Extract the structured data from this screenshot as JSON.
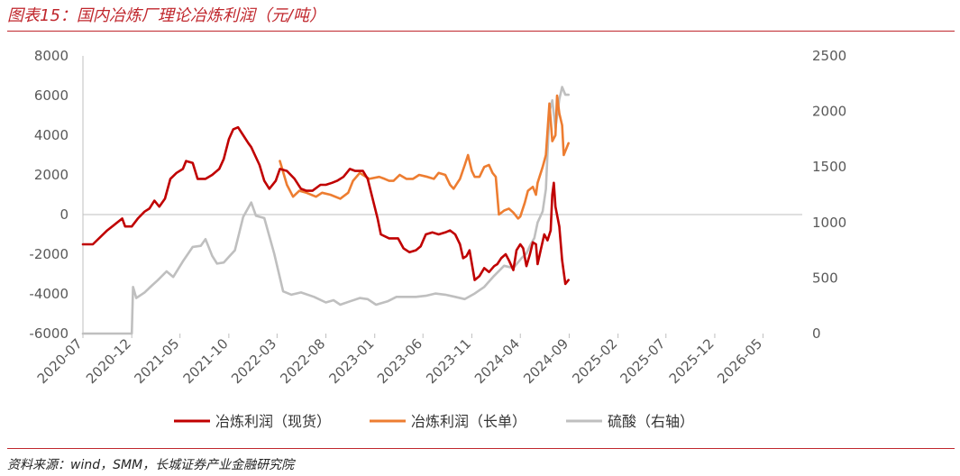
{
  "header": {
    "title": "图表15：国内冶炼厂理论冶炼利润（元/吨）"
  },
  "footer": {
    "source": "资料来源：wind，SMM，长城证券产业金融研究院"
  },
  "colors": {
    "accent": "#c0272d",
    "spot": "#c00000",
    "long": "#ed7d31",
    "acid": "#bfbfbf"
  },
  "chart_data": {
    "type": "line",
    "title": "国内冶炼厂理论冶炼利润（元/吨）",
    "x_axis": {
      "start": "2020-07",
      "end": "2026-09",
      "tick_labels": [
        "2020-07",
        "2020-12",
        "2021-05",
        "2021-10",
        "2022-03",
        "2022-08",
        "2023-01",
        "2023-06",
        "2023-11",
        "2024-04",
        "2024-09",
        "2025-02",
        "2025-07",
        "2025-12",
        "2026-05"
      ]
    },
    "y_left": {
      "min": -6000,
      "max": 8000,
      "step": 2000,
      "tick_labels": [
        "8000",
        "6000",
        "4000",
        "2000",
        "0",
        "-2000",
        "-4000",
        "-6000"
      ]
    },
    "y_right": {
      "min": 0,
      "max": 2500,
      "step": 500,
      "tick_labels": [
        "2500",
        "2000",
        "1500",
        "1000",
        "500",
        "0"
      ]
    },
    "grid": false,
    "legend_position": "bottom",
    "series": [
      {
        "name": "冶炼利润（现货）",
        "axis": "left",
        "color": "#c00000",
        "points": [
          [
            "2020-07-01",
            -1500
          ],
          [
            "2020-08-01",
            -1500
          ],
          [
            "2020-09-15",
            -800
          ],
          [
            "2020-11-01",
            -200
          ],
          [
            "2020-11-10",
            -600
          ],
          [
            "2020-12-01",
            -600
          ],
          [
            "2020-12-20",
            -200
          ],
          [
            "2021-01-10",
            150
          ],
          [
            "2021-01-25",
            300
          ],
          [
            "2021-02-10",
            700
          ],
          [
            "2021-02-25",
            400
          ],
          [
            "2021-03-15",
            800
          ],
          [
            "2021-04-01",
            1800
          ],
          [
            "2021-04-20",
            2100
          ],
          [
            "2021-05-10",
            2300
          ],
          [
            "2021-05-20",
            2700
          ],
          [
            "2021-06-10",
            2600
          ],
          [
            "2021-06-25",
            1800
          ],
          [
            "2021-07-20",
            1800
          ],
          [
            "2021-08-10",
            2000
          ],
          [
            "2021-09-01",
            2300
          ],
          [
            "2021-09-15",
            2800
          ],
          [
            "2021-10-01",
            3800
          ],
          [
            "2021-10-15",
            4300
          ],
          [
            "2021-10-30",
            4400
          ],
          [
            "2021-11-15",
            4000
          ],
          [
            "2021-12-01",
            3600
          ],
          [
            "2021-12-10",
            3400
          ],
          [
            "2022-01-05",
            2500
          ],
          [
            "2022-01-20",
            1700
          ],
          [
            "2022-02-05",
            1300
          ],
          [
            "2022-02-25",
            1700
          ],
          [
            "2022-03-10",
            2300
          ],
          [
            "2022-04-01",
            2200
          ],
          [
            "2022-04-25",
            1800
          ],
          [
            "2022-05-15",
            1300
          ],
          [
            "2022-06-01",
            1200
          ],
          [
            "2022-06-20",
            1200
          ],
          [
            "2022-07-15",
            1500
          ],
          [
            "2022-08-01",
            1500
          ],
          [
            "2022-08-20",
            1600
          ],
          [
            "2022-09-05",
            1700
          ],
          [
            "2022-09-25",
            1900
          ],
          [
            "2022-10-15",
            2300
          ],
          [
            "2022-11-01",
            2200
          ],
          [
            "2022-11-25",
            2200
          ],
          [
            "2022-12-10",
            1800
          ],
          [
            "2023-01-10",
            -200
          ],
          [
            "2023-01-20",
            -1000
          ],
          [
            "2023-02-15",
            -1200
          ],
          [
            "2023-03-15",
            -1200
          ],
          [
            "2023-04-01",
            -1700
          ],
          [
            "2023-04-20",
            -1900
          ],
          [
            "2023-05-10",
            -1800
          ],
          [
            "2023-05-25",
            -1600
          ],
          [
            "2023-06-10",
            -1000
          ],
          [
            "2023-07-01",
            -900
          ],
          [
            "2023-07-20",
            -1000
          ],
          [
            "2023-08-10",
            -900
          ],
          [
            "2023-08-25",
            -800
          ],
          [
            "2023-09-10",
            -1000
          ],
          [
            "2023-09-25",
            -1500
          ],
          [
            "2023-10-05",
            -2200
          ],
          [
            "2023-10-15",
            -2100
          ],
          [
            "2023-10-25",
            -1800
          ],
          [
            "2023-11-10",
            -3300
          ],
          [
            "2023-11-25",
            -3100
          ],
          [
            "2023-12-10",
            -2700
          ],
          [
            "2023-12-25",
            -2900
          ],
          [
            "2024-01-10",
            -2600
          ],
          [
            "2024-01-20",
            -2500
          ],
          [
            "2024-02-01",
            -2200
          ],
          [
            "2024-02-15",
            -2000
          ],
          [
            "2024-02-25",
            -2300
          ],
          [
            "2024-03-10",
            -2800
          ],
          [
            "2024-03-20",
            -1800
          ],
          [
            "2024-04-01",
            -1500
          ],
          [
            "2024-04-10",
            -1700
          ],
          [
            "2024-04-20",
            -2600
          ],
          [
            "2024-05-01",
            -2000
          ],
          [
            "2024-05-10",
            -1400
          ],
          [
            "2024-05-20",
            -1500
          ],
          [
            "2024-05-25",
            -2500
          ],
          [
            "2024-06-05",
            -1700
          ],
          [
            "2024-06-15",
            -1000
          ],
          [
            "2024-06-25",
            -1300
          ],
          [
            "2024-07-05",
            -800
          ],
          [
            "2024-07-10",
            1000
          ],
          [
            "2024-07-15",
            1600
          ],
          [
            "2024-07-20",
            400
          ],
          [
            "2024-08-01",
            -600
          ],
          [
            "2024-08-10",
            -2300
          ],
          [
            "2024-08-20",
            -3500
          ],
          [
            "2024-08-30",
            -3300
          ]
        ]
      },
      {
        "name": "冶炼利润（长单）",
        "axis": "left",
        "color": "#ed7d31",
        "points": [
          [
            "2022-03-10",
            2700
          ],
          [
            "2022-04-01",
            1500
          ],
          [
            "2022-04-20",
            900
          ],
          [
            "2022-05-10",
            1200
          ],
          [
            "2022-06-01",
            1100
          ],
          [
            "2022-07-01",
            900
          ],
          [
            "2022-07-20",
            1100
          ],
          [
            "2022-08-15",
            1000
          ],
          [
            "2022-09-15",
            800
          ],
          [
            "2022-10-10",
            1100
          ],
          [
            "2022-10-25",
            1700
          ],
          [
            "2022-11-15",
            2100
          ],
          [
            "2022-11-25",
            2000
          ],
          [
            "2022-12-15",
            1800
          ],
          [
            "2023-01-15",
            1900
          ],
          [
            "2023-02-01",
            1800
          ],
          [
            "2023-02-15",
            1700
          ],
          [
            "2023-03-01",
            1700
          ],
          [
            "2023-03-20",
            2000
          ],
          [
            "2023-04-10",
            1800
          ],
          [
            "2023-05-01",
            1800
          ],
          [
            "2023-05-20",
            2000
          ],
          [
            "2023-06-15",
            1900
          ],
          [
            "2023-07-05",
            1800
          ],
          [
            "2023-07-20",
            2100
          ],
          [
            "2023-08-10",
            2000
          ],
          [
            "2023-08-25",
            1500
          ],
          [
            "2023-09-05",
            1300
          ],
          [
            "2023-09-25",
            1800
          ],
          [
            "2023-10-10",
            2500
          ],
          [
            "2023-10-20",
            3000
          ],
          [
            "2023-11-01",
            2200
          ],
          [
            "2023-11-10",
            1900
          ],
          [
            "2023-11-25",
            1900
          ],
          [
            "2023-12-10",
            2400
          ],
          [
            "2023-12-25",
            2500
          ],
          [
            "2024-01-05",
            2100
          ],
          [
            "2024-01-15",
            1900
          ],
          [
            "2024-01-25",
            0
          ],
          [
            "2024-02-10",
            200
          ],
          [
            "2024-02-25",
            300
          ],
          [
            "2024-03-10",
            100
          ],
          [
            "2024-03-25",
            -200
          ],
          [
            "2024-04-01",
            -100
          ],
          [
            "2024-04-15",
            600
          ],
          [
            "2024-04-25",
            1200
          ],
          [
            "2024-05-10",
            1400
          ],
          [
            "2024-05-20",
            1000
          ],
          [
            "2024-05-25",
            1600
          ],
          [
            "2024-06-10",
            2400
          ],
          [
            "2024-06-20",
            3000
          ],
          [
            "2024-07-01",
            5600
          ],
          [
            "2024-07-10",
            3700
          ],
          [
            "2024-07-20",
            4000
          ],
          [
            "2024-07-25",
            6000
          ],
          [
            "2024-08-01",
            5100
          ],
          [
            "2024-08-10",
            4500
          ],
          [
            "2024-08-15",
            3000
          ],
          [
            "2024-08-30",
            3600
          ]
        ]
      },
      {
        "name": "硫酸（右轴）",
        "axis": "right",
        "color": "#bfbfbf",
        "points": [
          [
            "2020-07-01",
            0
          ],
          [
            "2020-12-01",
            0
          ],
          [
            "2020-12-05",
            420
          ],
          [
            "2020-12-15",
            320
          ],
          [
            "2021-01-10",
            370
          ],
          [
            "2021-02-01",
            430
          ],
          [
            "2021-02-20",
            480
          ],
          [
            "2021-03-20",
            560
          ],
          [
            "2021-04-10",
            510
          ],
          [
            "2021-05-10",
            650
          ],
          [
            "2021-06-10",
            780
          ],
          [
            "2021-07-05",
            790
          ],
          [
            "2021-07-20",
            850
          ],
          [
            "2021-08-10",
            700
          ],
          [
            "2021-08-25",
            630
          ],
          [
            "2021-09-15",
            640
          ],
          [
            "2021-10-20",
            750
          ],
          [
            "2021-11-15",
            1050
          ],
          [
            "2021-12-10",
            1180
          ],
          [
            "2021-12-25",
            1060
          ],
          [
            "2022-01-20",
            1040
          ],
          [
            "2022-02-20",
            720
          ],
          [
            "2022-03-20",
            380
          ],
          [
            "2022-04-15",
            350
          ],
          [
            "2022-05-15",
            370
          ],
          [
            "2022-06-25",
            330
          ],
          [
            "2022-08-01",
            280
          ],
          [
            "2022-08-25",
            300
          ],
          [
            "2022-09-15",
            260
          ],
          [
            "2022-10-15",
            290
          ],
          [
            "2022-11-15",
            320
          ],
          [
            "2022-12-10",
            310
          ],
          [
            "2023-01-05",
            260
          ],
          [
            "2023-02-10",
            290
          ],
          [
            "2023-03-10",
            330
          ],
          [
            "2023-04-10",
            330
          ],
          [
            "2023-05-10",
            330
          ],
          [
            "2023-06-10",
            340
          ],
          [
            "2023-07-10",
            360
          ],
          [
            "2023-08-10",
            350
          ],
          [
            "2023-09-10",
            330
          ],
          [
            "2023-10-10",
            310
          ],
          [
            "2023-11-10",
            360
          ],
          [
            "2023-12-10",
            420
          ],
          [
            "2024-01-10",
            520
          ],
          [
            "2024-02-10",
            610
          ],
          [
            "2024-03-10",
            590
          ],
          [
            "2024-04-05",
            680
          ],
          [
            "2024-04-20",
            720
          ],
          [
            "2024-05-01",
            790
          ],
          [
            "2024-05-15",
            860
          ],
          [
            "2024-05-25",
            1000
          ],
          [
            "2024-06-10",
            1100
          ],
          [
            "2024-06-20",
            1300
          ],
          [
            "2024-07-01",
            2000
          ],
          [
            "2024-07-10",
            2100
          ],
          [
            "2024-07-20",
            1850
          ],
          [
            "2024-08-01",
            2110
          ],
          [
            "2024-08-10",
            2220
          ],
          [
            "2024-08-20",
            2150
          ],
          [
            "2024-08-30",
            2150
          ]
        ]
      }
    ]
  },
  "legend": [
    {
      "label": "冶炼利润（现货）"
    },
    {
      "label": "冶炼利润（长单）"
    },
    {
      "label": "硫酸（右轴）"
    }
  ]
}
